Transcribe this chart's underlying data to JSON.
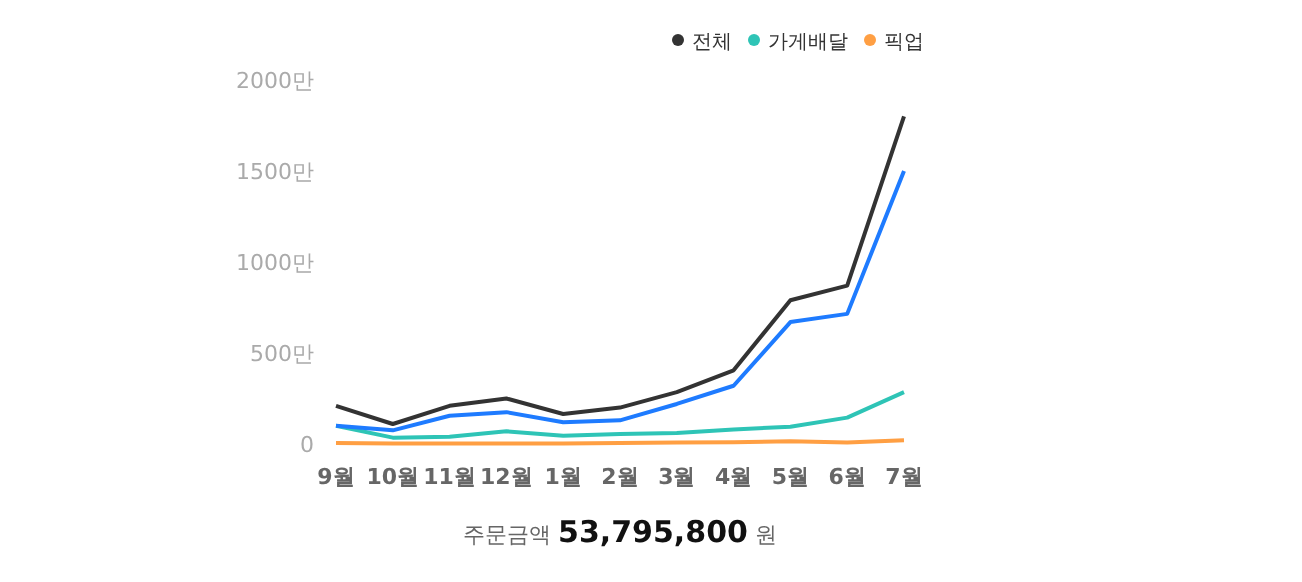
{
  "chart_data": {
    "type": "line",
    "categories": [
      "9월",
      "10월",
      "11월",
      "12월",
      "1월",
      "2월",
      "3월",
      "4월",
      "5월",
      "6월",
      "7월"
    ],
    "series": [
      {
        "name": "전체",
        "color": "#333333",
        "values": [
          210,
          110,
          210,
          250,
          165,
          200,
          285,
          405,
          790,
          870,
          1800
        ]
      },
      {
        "name": "가게배달",
        "color": "#2ec4b6",
        "values": [
          100,
          35,
          40,
          70,
          45,
          55,
          60,
          80,
          95,
          145,
          285
        ]
      },
      {
        "name": "픽업",
        "color": "#ff9f43",
        "values": [
          5,
          3,
          3,
          3,
          3,
          5,
          8,
          10,
          15,
          8,
          20
        ]
      },
      {
        "color": "#1e7bff",
        "values": [
          100,
          75,
          155,
          175,
          120,
          130,
          220,
          320,
          670,
          715,
          1500
        ]
      }
    ],
    "ylim": [
      0,
      2000
    ],
    "yticks": [
      0,
      {
        "value": 500,
        "label": "500만"
      },
      {
        "value": 1000,
        "label": "1000만"
      },
      {
        "value": 1500,
        "label": "1500만"
      },
      {
        "value": 2000,
        "label": "2000만"
      }
    ],
    "grid": false,
    "legend": "top right",
    "marker": "none",
    "line_style": "solid",
    "annotations": [
      "주문금액 53,795,800 원"
    ]
  }
}
